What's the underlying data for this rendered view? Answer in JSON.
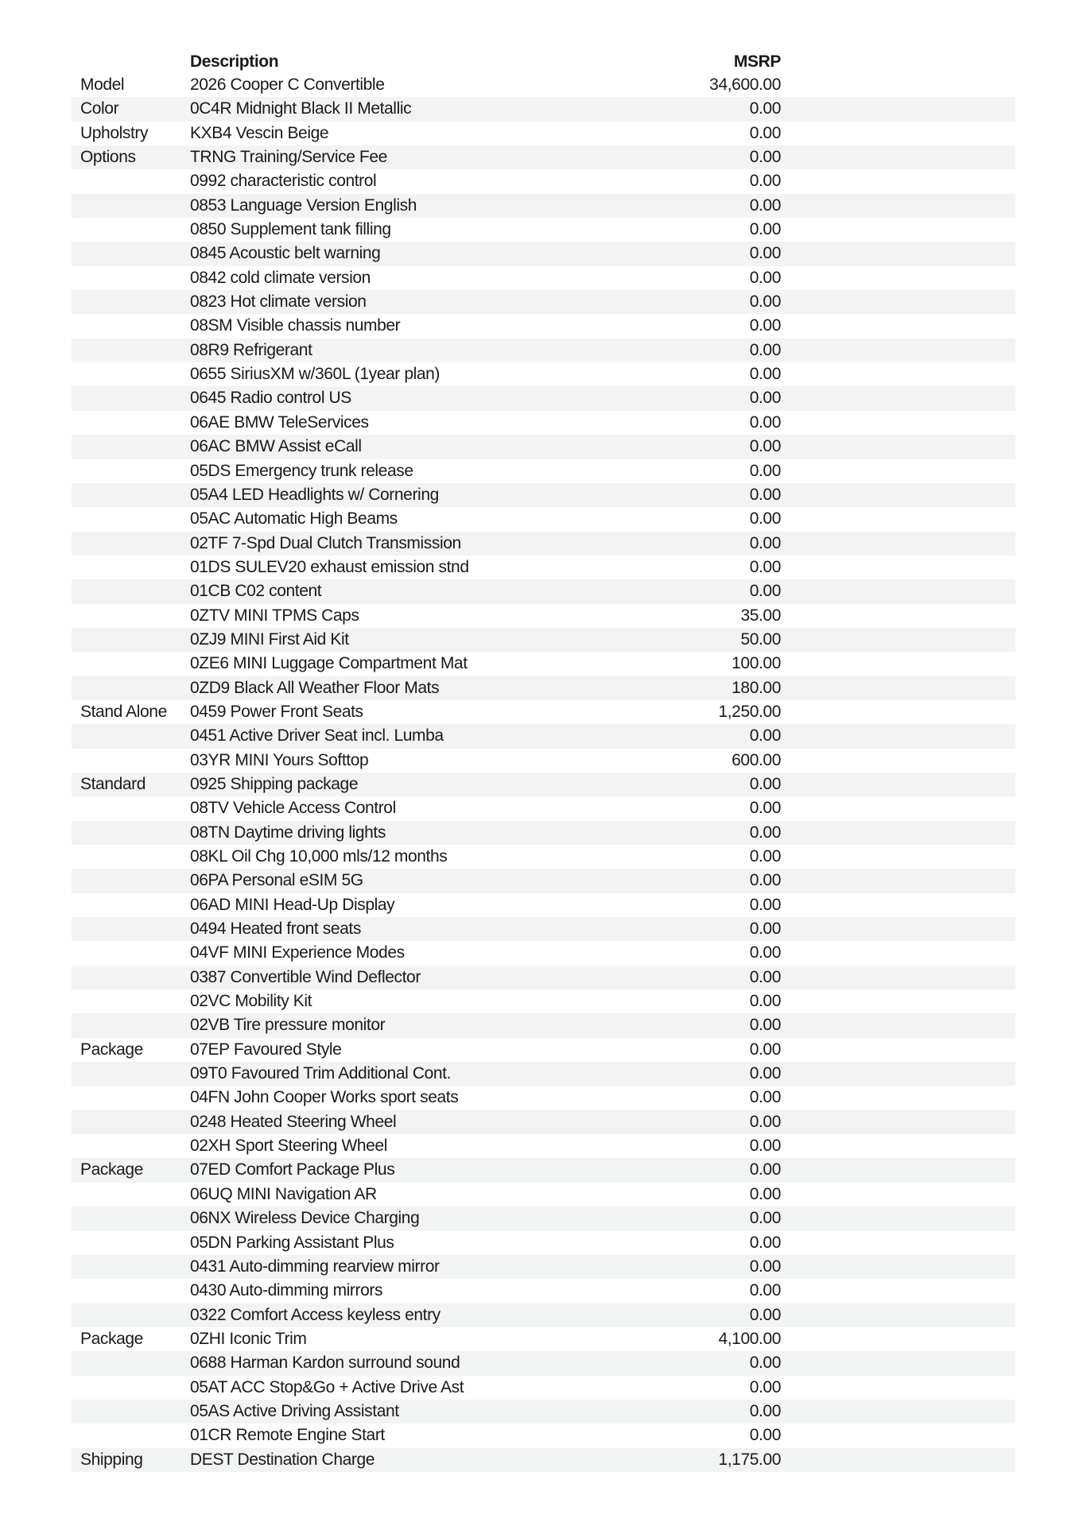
{
  "header": {
    "description": "Description",
    "msrp": "MSRP"
  },
  "colors": {
    "row_shade": "#f2f3f3",
    "text": "#1a1a1a"
  },
  "rows": [
    {
      "category": "Model",
      "description": "2026 Cooper C Convertible",
      "msrp": "34,600.00"
    },
    {
      "category": "Color",
      "description": "0C4R Midnight Black II Metallic",
      "msrp": "0.00"
    },
    {
      "category": "Upholstry",
      "description": "KXB4 Vescin Beige",
      "msrp": "0.00"
    },
    {
      "category": "Options",
      "description": "TRNG Training/Service Fee",
      "msrp": "0.00"
    },
    {
      "category": "",
      "description": "0992 characteristic control",
      "msrp": "0.00"
    },
    {
      "category": "",
      "description": "0853 Language Version English",
      "msrp": "0.00"
    },
    {
      "category": "",
      "description": "0850 Supplement tank filling",
      "msrp": "0.00"
    },
    {
      "category": "",
      "description": "0845 Acoustic belt warning",
      "msrp": "0.00"
    },
    {
      "category": "",
      "description": "0842 cold climate version",
      "msrp": "0.00"
    },
    {
      "category": "",
      "description": "0823 Hot climate version",
      "msrp": "0.00"
    },
    {
      "category": "",
      "description": "08SM Visible chassis number",
      "msrp": "0.00"
    },
    {
      "category": "",
      "description": "08R9 Refrigerant",
      "msrp": "0.00"
    },
    {
      "category": "",
      "description": "0655 SiriusXM w/360L (1year plan)",
      "msrp": "0.00"
    },
    {
      "category": "",
      "description": "0645 Radio control US",
      "msrp": "0.00"
    },
    {
      "category": "",
      "description": "06AE BMW TeleServices",
      "msrp": "0.00"
    },
    {
      "category": "",
      "description": "06AC BMW Assist eCall",
      "msrp": "0.00"
    },
    {
      "category": "",
      "description": "05DS Emergency trunk release",
      "msrp": "0.00"
    },
    {
      "category": "",
      "description": "05A4 LED Headlights w/ Cornering",
      "msrp": "0.00"
    },
    {
      "category": "",
      "description": "05AC Automatic High Beams",
      "msrp": "0.00"
    },
    {
      "category": "",
      "description": "02TF 7-Spd Dual Clutch Transmission",
      "msrp": "0.00"
    },
    {
      "category": "",
      "description": "01DS SULEV20 exhaust emission stnd",
      "msrp": "0.00"
    },
    {
      "category": "",
      "description": "01CB C02 content",
      "msrp": "0.00"
    },
    {
      "category": "",
      "description": "0ZTV MINI TPMS Caps",
      "msrp": "35.00"
    },
    {
      "category": "",
      "description": "0ZJ9 MINI First Aid Kit",
      "msrp": "50.00"
    },
    {
      "category": "",
      "description": "0ZE6 MINI Luggage Compartment Mat",
      "msrp": "100.00"
    },
    {
      "category": "",
      "description": "0ZD9 Black All Weather Floor Mats",
      "msrp": "180.00"
    },
    {
      "category": "Stand Alone",
      "description": "0459 Power Front Seats",
      "msrp": "1,250.00"
    },
    {
      "category": "",
      "description": "0451 Active Driver Seat incl. Lumba",
      "msrp": "0.00"
    },
    {
      "category": "",
      "description": "03YR MINI Yours Softtop",
      "msrp": "600.00"
    },
    {
      "category": "Standard",
      "description": "0925 Shipping package",
      "msrp": "0.00"
    },
    {
      "category": "",
      "description": "08TV Vehicle Access Control",
      "msrp": "0.00"
    },
    {
      "category": "",
      "description": "08TN Daytime driving lights",
      "msrp": "0.00"
    },
    {
      "category": "",
      "description": "08KL Oil Chg 10,000 mls/12 months",
      "msrp": "0.00"
    },
    {
      "category": "",
      "description": "06PA Personal eSIM 5G",
      "msrp": "0.00"
    },
    {
      "category": "",
      "description": "06AD MINI Head-Up Display",
      "msrp": "0.00"
    },
    {
      "category": "",
      "description": "0494 Heated front seats",
      "msrp": "0.00"
    },
    {
      "category": "",
      "description": "04VF MINI Experience Modes",
      "msrp": "0.00"
    },
    {
      "category": "",
      "description": "0387 Convertible Wind Deflector",
      "msrp": "0.00"
    },
    {
      "category": "",
      "description": "02VC Mobility Kit",
      "msrp": "0.00"
    },
    {
      "category": "",
      "description": "02VB Tire pressure monitor",
      "msrp": "0.00"
    },
    {
      "category": "Package",
      "description": "07EP Favoured Style",
      "msrp": "0.00"
    },
    {
      "category": "",
      "description": "09T0 Favoured Trim Additional Cont.",
      "msrp": "0.00"
    },
    {
      "category": "",
      "description": "04FN John Cooper Works sport seats",
      "msrp": "0.00"
    },
    {
      "category": "",
      "description": "0248 Heated Steering Wheel",
      "msrp": "0.00"
    },
    {
      "category": "",
      "description": "02XH Sport Steering Wheel",
      "msrp": "0.00"
    },
    {
      "category": "Package",
      "description": "07ED Comfort Package Plus",
      "msrp": "0.00"
    },
    {
      "category": "",
      "description": "06UQ MINI Navigation AR",
      "msrp": "0.00"
    },
    {
      "category": "",
      "description": "06NX Wireless Device Charging",
      "msrp": "0.00"
    },
    {
      "category": "",
      "description": "05DN Parking Assistant Plus",
      "msrp": "0.00"
    },
    {
      "category": "",
      "description": "0431 Auto-dimming rearview mirror",
      "msrp": "0.00"
    },
    {
      "category": "",
      "description": "0430 Auto-dimming mirrors",
      "msrp": "0.00"
    },
    {
      "category": "",
      "description": "0322 Comfort Access keyless entry",
      "msrp": "0.00"
    },
    {
      "category": "Package",
      "description": "0ZHI Iconic Trim",
      "msrp": "4,100.00"
    },
    {
      "category": "",
      "description": "0688 Harman Kardon surround sound",
      "msrp": "0.00"
    },
    {
      "category": "",
      "description": "05AT ACC Stop&Go + Active Drive Ast",
      "msrp": "0.00"
    },
    {
      "category": "",
      "description": "05AS Active Driving Assistant",
      "msrp": "0.00"
    },
    {
      "category": "",
      "description": "01CR Remote Engine Start",
      "msrp": "0.00"
    },
    {
      "category": "Shipping",
      "description": "DEST Destination Charge",
      "msrp": "1,175.00"
    }
  ]
}
